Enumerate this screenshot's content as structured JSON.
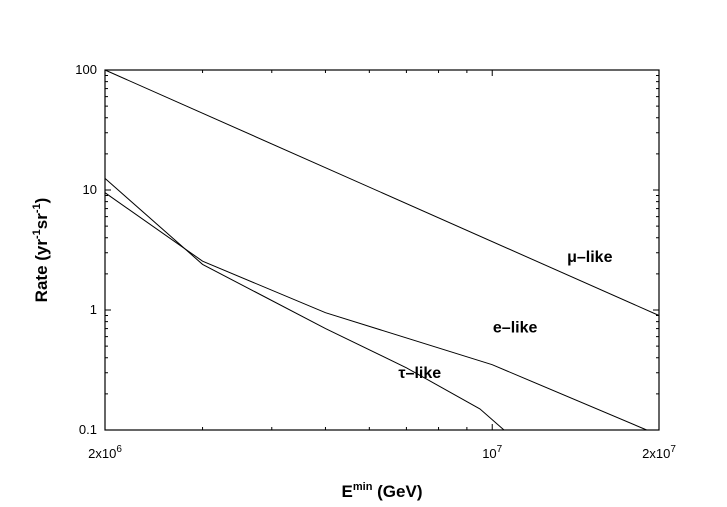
{
  "chart_data": {
    "type": "line",
    "title": "",
    "xlabel": "E",
    "xlabel_sup": "min",
    "xlabel_suffix": " (GeV)",
    "ylabel": "Rate (yr",
    "ylabel_sup1": "-1",
    "ylabel_mid": "sr",
    "ylabel_sup2": "-1",
    "ylabel_suffix": ")",
    "xscale": "log",
    "yscale": "log",
    "xlim": [
      2000000,
      20000000
    ],
    "ylim": [
      0.1,
      100
    ],
    "grid": false,
    "x_tick_labels": [
      {
        "value": 2000000,
        "base": "2x10",
        "exp": "6"
      },
      {
        "value": 10000000,
        "base": "10",
        "exp": "7"
      },
      {
        "value": 20000000,
        "base": "2x10",
        "exp": "7"
      }
    ],
    "y_tick_labels": [
      {
        "value": 100,
        "text": "100"
      },
      {
        "value": 10,
        "text": "10"
      },
      {
        "value": 1,
        "text": "1"
      },
      {
        "value": 0.1,
        "text": "0.1"
      }
    ],
    "series": [
      {
        "name": "μ–like",
        "label_at": [
          15000000,
          2.5
        ],
        "x": [
          2000000,
          20000000
        ],
        "y": [
          100,
          0.9
        ]
      },
      {
        "name": "e–like",
        "label_at": [
          11000000,
          0.65
        ],
        "x": [
          2000000,
          3000000,
          5000000,
          10000000,
          19000000
        ],
        "y": [
          9.5,
          2.55,
          0.95,
          0.35,
          0.1
        ]
      },
      {
        "name": "τ–like",
        "label_at": [
          7400000,
          0.27
        ],
        "x": [
          2000000,
          3000000,
          5000000,
          7000000,
          9500000,
          10500000
        ],
        "y": [
          12.5,
          2.4,
          0.7,
          0.33,
          0.15,
          0.1
        ]
      }
    ]
  }
}
